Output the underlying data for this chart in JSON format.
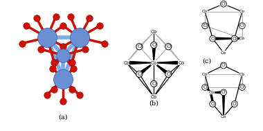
{
  "bg_color": "#ffffff",
  "label_a": "(a)",
  "label_b": "(b)",
  "label_c": "(c)",
  "co_color": "#6b8fd4",
  "co_edge_color": "#3a5faa",
  "o_color": "#cc1100",
  "bond_blue": "#7aaae8",
  "bond_red": "#cc1100",
  "gray_bond": "#aaaaaa",
  "font_size_label": 7,
  "font_size_atom": 5.5,
  "font_size_co": 5.0
}
